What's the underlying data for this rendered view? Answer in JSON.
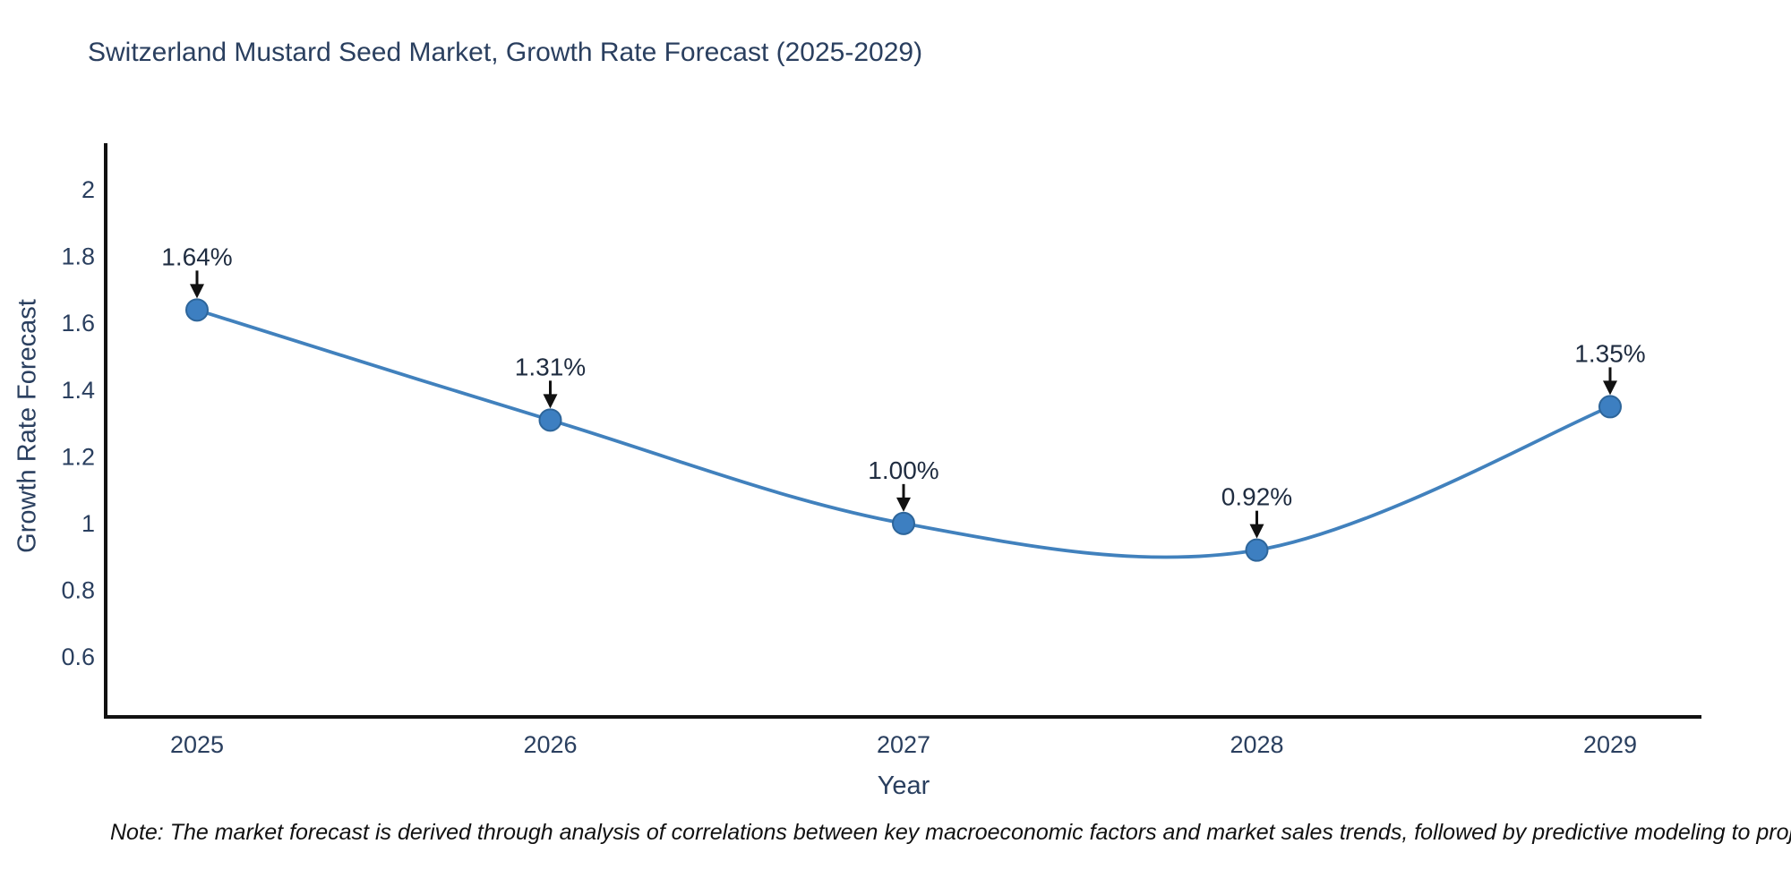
{
  "chart_data": {
    "type": "line",
    "title": "Switzerland Mustard Seed Market, Growth Rate Forecast (2025-2029)",
    "xlabel": "Year",
    "ylabel": "Growth Rate Forecast",
    "categories": [
      "2025",
      "2026",
      "2027",
      "2028",
      "2029"
    ],
    "values": [
      1.64,
      1.31,
      1.0,
      0.92,
      1.35
    ],
    "point_labels": [
      "1.64%",
      "1.31%",
      "1.00%",
      "0.92%",
      "1.35%"
    ],
    "ytick_values": [
      2,
      1.8,
      1.6,
      1.4,
      1.2,
      1,
      0.8,
      0.6
    ],
    "ytick_labels": [
      "2",
      "1.8",
      "1.6",
      "1.4",
      "1.2",
      "1",
      "0.8",
      "0.6"
    ],
    "ylim": [
      0.42,
      2.14
    ],
    "line_shape": "spline",
    "grid": false,
    "legend": "none",
    "note": "Note: The market forecast is derived through analysis of correlations between key macroeconomic factors and market sales trends, followed by predictive modeling to project future sales",
    "colors": {
      "line": "#4181bd",
      "marker_fill": "#3d7fc1",
      "marker_edge": "#2d659a",
      "axis": "#111111",
      "tick_text": "#2a3f5f",
      "title_text": "#2a3f5f",
      "annotation_text": "#1f2c40",
      "arrow": "#111111",
      "note_text": "#111111",
      "background": "#ffffff"
    }
  }
}
